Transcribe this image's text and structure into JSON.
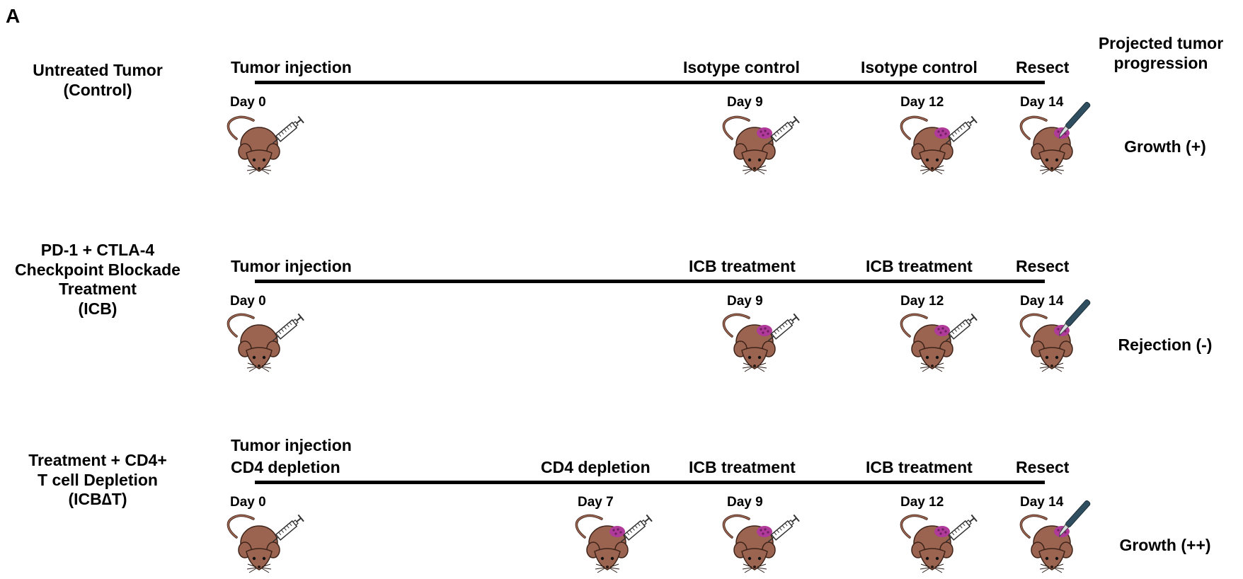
{
  "panel_label": "A",
  "column_header": "Projected tumor progression",
  "groups": [
    {
      "label_lines": [
        "Untreated Tumor",
        "(Control)"
      ],
      "events": [
        "Tumor injection",
        "Isotype control",
        "Isotype control",
        "Resect"
      ],
      "days": [
        "Day 0",
        "Day 9",
        "Day 12",
        "Day 14"
      ],
      "outcome": "Growth (+)"
    },
    {
      "label_lines": [
        "PD-1 + CTLA-4",
        "Checkpoint Blockade",
        "Treatment",
        "(ICB)"
      ],
      "events": [
        "Tumor injection",
        "ICB treatment",
        "ICB treatment",
        "Resect"
      ],
      "days": [
        "Day 0",
        "Day 9",
        "Day 12",
        "Day 14"
      ],
      "outcome": "Rejection (-)"
    },
    {
      "label_lines": [
        "Treatment + CD4+",
        "T cell Depletion",
        "(ICB∆T)"
      ],
      "events": [
        "Tumor injection",
        "CD4 depletion",
        "CD4 depletion",
        "ICB treatment",
        "ICB treatment",
        "Resect"
      ],
      "days": [
        "Day 0",
        "Day 7",
        "Day 9",
        "Day 12",
        "Day 14"
      ],
      "outcome": "Growth (++)"
    }
  ],
  "colors": {
    "mouse_body": "#9b6450",
    "mouse_outline": "#3d2319",
    "tumor": "#b03a9a",
    "timeline": "#000000"
  },
  "icons": {
    "mouse": "mouse-icon",
    "syringe": "syringe-icon",
    "scalpel": "scalpel-icon",
    "tumor": "tumor-icon"
  }
}
